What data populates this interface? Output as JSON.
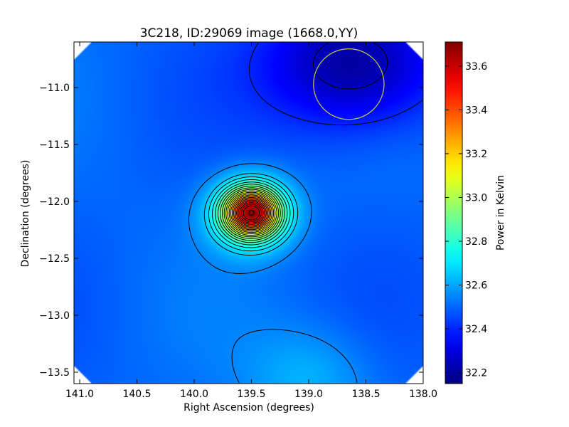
{
  "chart_data": {
    "type": "heatmap",
    "title": "3C218, ID:29069 image (1668.0,YY)",
    "xlabel": "Right Ascension (degrees)",
    "ylabel": "Declination (degrees)",
    "colorbar_label": "Power in Kelvin",
    "colormap": "jet",
    "xlim": [
      141.05,
      138.0
    ],
    "ylim": [
      -13.6,
      -10.6
    ],
    "x_ticks": [
      141.0,
      140.5,
      140.0,
      139.5,
      139.0,
      138.5,
      138.0
    ],
    "x_tick_labels": [
      "141.0",
      "140.5",
      "140.0",
      "139.5",
      "139.0",
      "138.5",
      "138.0"
    ],
    "y_ticks": [
      -11.0,
      -11.5,
      -12.0,
      -12.5,
      -13.0,
      -13.5
    ],
    "y_tick_labels": [
      "−11.0",
      "−11.5",
      "−12.0",
      "−12.5",
      "−13.0",
      "−13.5"
    ],
    "colorbar_range": [
      32.15,
      33.71
    ],
    "colorbar_ticks": [
      32.2,
      32.4,
      32.6,
      32.8,
      33.0,
      33.2,
      33.4,
      33.6
    ],
    "colorbar_tick_labels": [
      "32.2",
      "32.4",
      "32.6",
      "32.8",
      "33.0",
      "33.2",
      "33.4",
      "33.6"
    ],
    "peak": {
      "ra": 139.5,
      "dec": -12.1,
      "value": 33.7
    },
    "background_level": 32.5,
    "faint_emission": {
      "ra": 139.0,
      "dec": -13.55,
      "value": 32.62
    },
    "low_region": {
      "ra": 138.6,
      "dec": -10.8,
      "value": 32.2
    },
    "beam_circle": {
      "ra": 138.65,
      "dec": -10.97,
      "radius_deg": 0.31,
      "color": "#cccc44"
    },
    "contour_color": "#000000",
    "contour_levels": [
      32.25,
      32.4,
      32.55,
      32.65,
      32.7,
      32.75,
      32.8,
      32.85,
      32.9,
      32.95,
      33.0,
      33.05,
      33.1,
      33.15,
      33.2,
      33.25,
      33.3,
      33.35,
      33.4,
      33.45,
      33.5,
      33.55,
      33.6
    ]
  }
}
